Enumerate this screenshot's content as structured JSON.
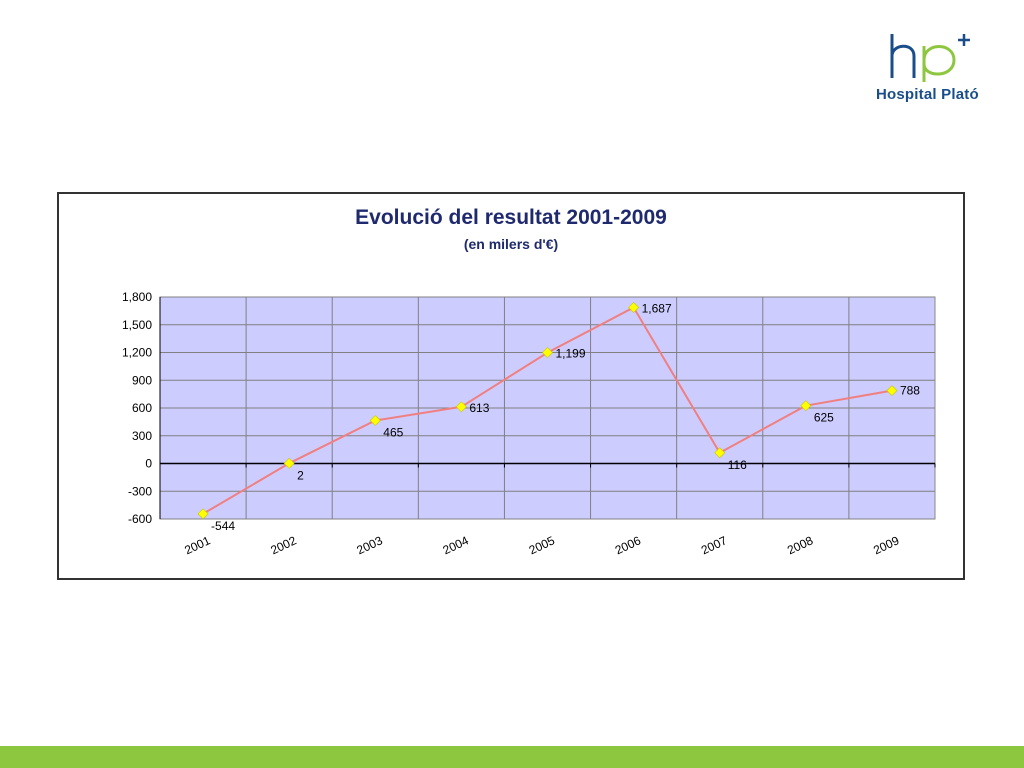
{
  "logo": {
    "name": "Hospital Plató"
  },
  "colors": {
    "plot_bg": "#ccccff",
    "line": "#f08080",
    "marker": "#ffff00",
    "brand_green": "#8dc63f",
    "brand_blue": "#1a4e8a"
  },
  "chart_data": {
    "type": "line",
    "title": "Evolució del resultat 2001-2009",
    "subtitle": "(en milers d'€)",
    "categories": [
      "2001",
      "2002",
      "2003",
      "2004",
      "2005",
      "2006",
      "2007",
      "2008",
      "2009"
    ],
    "series": [
      {
        "values": [
          -544,
          2,
          465,
          613,
          1199,
          1687,
          116,
          625,
          788
        ],
        "labels": [
          "-544",
          "2",
          "465",
          "613",
          "1,199",
          "1,687",
          "116",
          "625",
          "788"
        ]
      }
    ],
    "ylim": [
      -600,
      1800
    ],
    "yticks": [
      -600,
      -300,
      0,
      300,
      600,
      900,
      1200,
      1500,
      1800
    ],
    "ytick_labels": [
      "-600",
      "-300",
      "0",
      "300",
      "600",
      "900",
      "1,200",
      "1,500",
      "1,800"
    ],
    "grid": true,
    "legend": "none"
  }
}
